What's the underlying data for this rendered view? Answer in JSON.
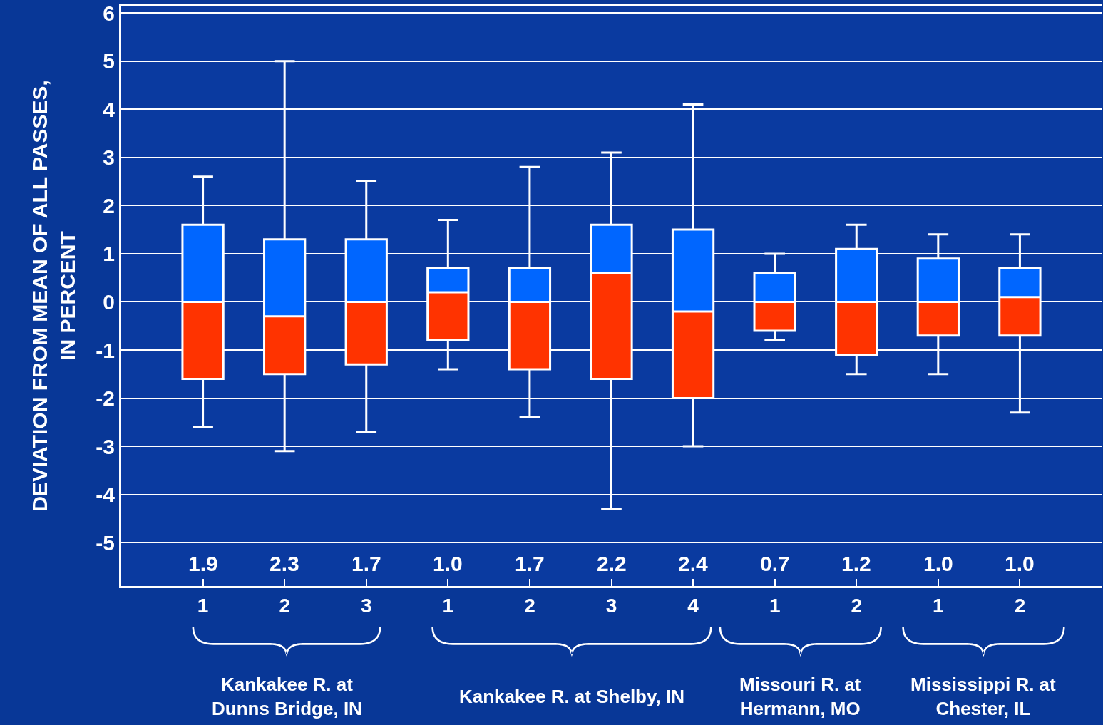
{
  "chart_data": {
    "type": "box",
    "ylabel": "DEVIATION FROM MEAN OF ALL PASSES,\nIN PERCENT",
    "categories": [
      "1",
      "2",
      "3",
      "1",
      "2",
      "3",
      "4",
      "1",
      "2",
      "1",
      "2"
    ],
    "colors": [
      [
        "#0066ff",
        "#ff3300"
      ],
      [
        "#0066ff",
        "#ff3300"
      ],
      [
        "#0066ff",
        "#ff3300"
      ],
      [
        "#0066ff",
        "#ff3300"
      ],
      [
        "#0066ff",
        "#ff3300"
      ],
      [
        "#0066ff",
        "#ff3300"
      ],
      [
        "#0066ff",
        "#ff3300"
      ],
      [
        "#0066ff",
        "#ff3300"
      ],
      [
        "#0066ff",
        "#ff3300"
      ],
      [
        "#0066ff",
        "#ff3300"
      ],
      [
        "#0066ff",
        "#ff3300"
      ]
    ],
    "boxes": [
      {
        "low": -2.6,
        "q1": -1.6,
        "median": 0.0,
        "q3": 1.6,
        "high": 2.6
      },
      {
        "low": -3.1,
        "q1": -1.5,
        "median": -0.3,
        "q3": 1.3,
        "high": 5.0
      },
      {
        "low": -2.7,
        "q1": -1.3,
        "median": 0.0,
        "q3": 1.3,
        "high": 2.5
      },
      {
        "low": -1.4,
        "q1": -0.8,
        "median": 0.2,
        "q3": 0.7,
        "high": 1.7
      },
      {
        "low": -2.4,
        "q1": -1.4,
        "median": 0.0,
        "q3": 0.7,
        "high": 2.8
      },
      {
        "low": -4.3,
        "q1": -1.6,
        "median": 0.6,
        "q3": 1.6,
        "high": 3.1
      },
      {
        "low": -3.0,
        "q1": -2.0,
        "median": -0.2,
        "q3": 1.5,
        "high": 4.1
      },
      {
        "low": -0.8,
        "q1": -0.6,
        "median": 0.0,
        "q3": 0.6,
        "high": 1.0
      },
      {
        "low": -1.5,
        "q1": -1.1,
        "median": 0.0,
        "q3": 1.1,
        "high": 1.6
      },
      {
        "low": -1.5,
        "q1": -0.7,
        "median": 0.0,
        "q3": 0.9,
        "high": 1.4
      },
      {
        "low": -2.3,
        "q1": -0.7,
        "median": 0.1,
        "q3": 0.7,
        "high": 1.4
      }
    ],
    "value_labels": [
      "1.9",
      "2.3",
      "1.7",
      "1.0",
      "1.7",
      "2.2",
      "2.4",
      "0.7",
      "1.2",
      "1.0",
      "1.0"
    ],
    "annotations": [
      "Kankakee R. at\nDunns Bridge, IN",
      "Kankakee R. at Shelby, IN",
      "Missouri R. at\nHermann, MO",
      "Mississippi R. at\nChester, IL"
    ],
    "ylim": [
      -5.9,
      6.15
    ],
    "yticks": [
      -5,
      -4,
      -3,
      -2,
      -1,
      0,
      1,
      2,
      3,
      4,
      5,
      6
    ],
    "grid": "y"
  }
}
